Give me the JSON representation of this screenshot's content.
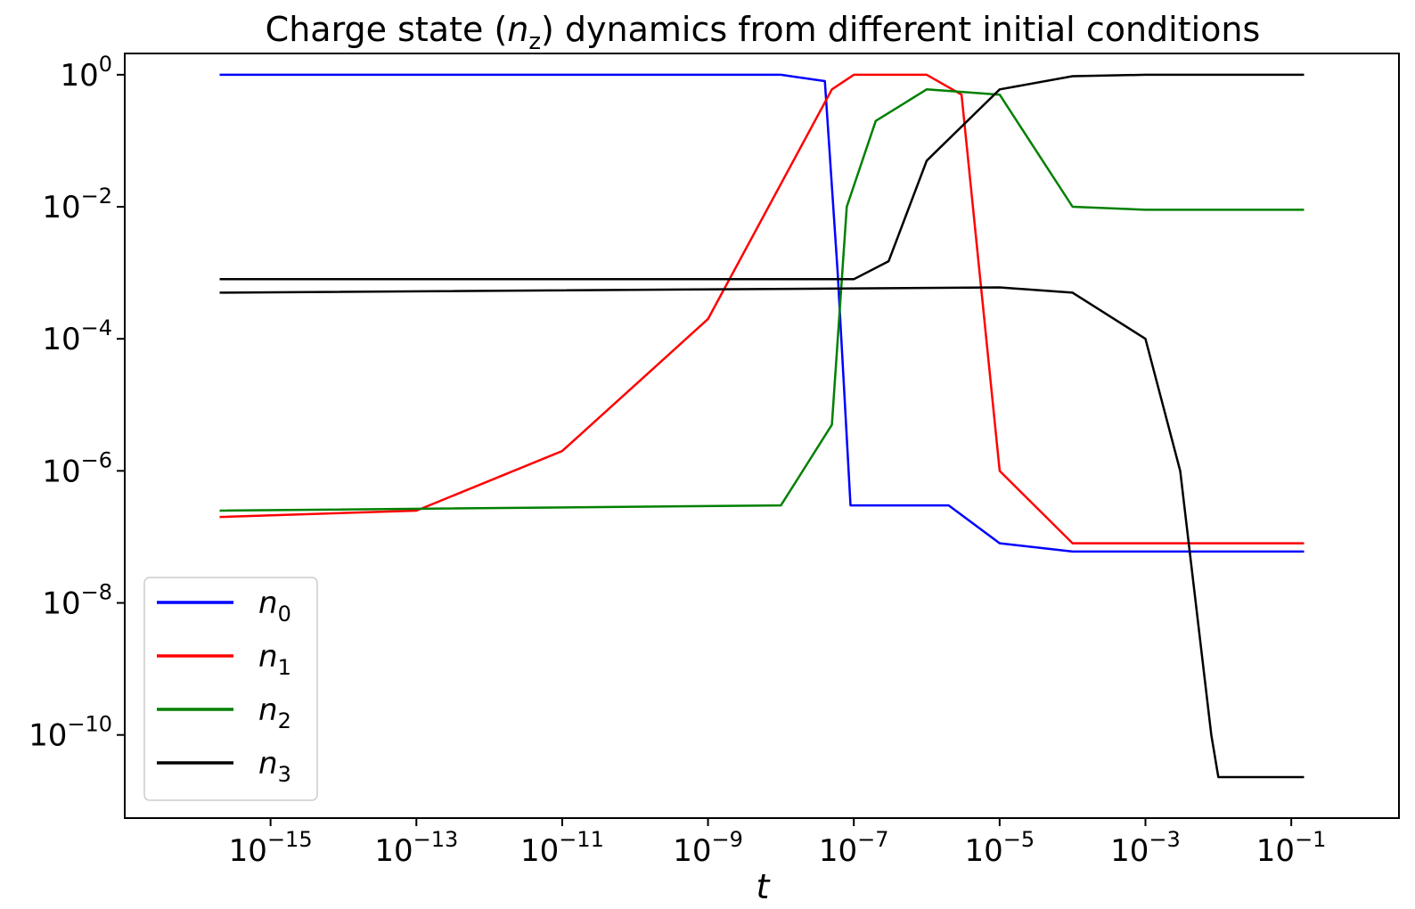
{
  "chart_data": {
    "type": "line",
    "title": {
      "prefix": "Charge state (",
      "var": "n",
      "sub": "z",
      "suffix": ") dynamics from different initial conditions"
    },
    "xlabel": "t",
    "ylabel": "",
    "xscale": "log",
    "yscale": "log",
    "xlim": [
      "1e-17",
      "3"
    ],
    "ylim": [
      "5.5e-12",
      "2.1"
    ],
    "x_ticks": [
      {
        "base": "10",
        "exp": "−15",
        "value": 1e-15
      },
      {
        "base": "10",
        "exp": "−13",
        "value": 1e-13
      },
      {
        "base": "10",
        "exp": "−11",
        "value": 1e-11
      },
      {
        "base": "10",
        "exp": "−9",
        "value": 1e-09
      },
      {
        "base": "10",
        "exp": "−7",
        "value": 1e-07
      },
      {
        "base": "10",
        "exp": "−5",
        "value": 1e-05
      },
      {
        "base": "10",
        "exp": "−3",
        "value": 0.001
      },
      {
        "base": "10",
        "exp": "−1",
        "value": 0.1
      }
    ],
    "y_ticks": [
      {
        "base": "10",
        "exp": "0",
        "value": 1
      },
      {
        "base": "10",
        "exp": "−2",
        "value": 0.01
      },
      {
        "base": "10",
        "exp": "−4",
        "value": 0.0001
      },
      {
        "base": "10",
        "exp": "−6",
        "value": 1e-06
      },
      {
        "base": "10",
        "exp": "−8",
        "value": 1e-08
      },
      {
        "base": "10",
        "exp": "−10",
        "value": 1e-10
      }
    ],
    "grid": false,
    "legend_position": "lower-left",
    "series": [
      {
        "name": "n",
        "sub": "0",
        "color": "#0000ff",
        "x": [
          2e-16,
          1e-08,
          4e-08,
          6e-08,
          9e-08,
          2e-06,
          1e-05,
          0.0001,
          0.01,
          0.15
        ],
        "y": [
          1.0,
          1.0,
          0.8,
          0.001,
          3e-07,
          3e-07,
          8e-08,
          6e-08,
          6e-08,
          6e-08
        ]
      },
      {
        "name": "n",
        "sub": "1",
        "color": "#ff0000",
        "x": [
          2e-16,
          1e-13,
          1e-11,
          1e-09,
          5e-08,
          1e-07,
          1e-06,
          3e-06,
          1e-05,
          0.0001,
          0.15
        ],
        "y": [
          2e-07,
          2.5e-07,
          2e-06,
          0.0002,
          0.6,
          1.0,
          1.0,
          0.5,
          1e-06,
          8e-08,
          8e-08
        ]
      },
      {
        "name": "n",
        "sub": "2",
        "color": "#008000",
        "x": [
          2e-16,
          1e-08,
          5e-08,
          8e-08,
          2e-07,
          1e-06,
          1e-05,
          0.0001,
          0.001,
          0.15
        ],
        "y": [
          2.5e-07,
          3e-07,
          5e-06,
          0.01,
          0.2,
          0.6,
          0.5,
          0.01,
          0.009,
          0.009
        ]
      },
      {
        "name": "n",
        "sub": "3",
        "color": "#000000",
        "x": [
          2e-16,
          1e-07,
          3e-07,
          1e-06,
          1e-05,
          0.0001,
          0.001,
          0.15
        ],
        "y": [
          0.0008,
          0.0008,
          0.0015,
          0.05,
          0.6,
          0.95,
          1.0,
          1.0
        ]
      },
      {
        "name": "",
        "color": "#000000",
        "x": [
          2e-16,
          1e-05,
          0.0001,
          0.001,
          0.003,
          0.008,
          0.01,
          0.15
        ],
        "y": [
          0.0005,
          0.0006,
          0.0005,
          0.0001,
          1e-06,
          1e-10,
          2.3e-11,
          2.3e-11
        ]
      }
    ]
  }
}
